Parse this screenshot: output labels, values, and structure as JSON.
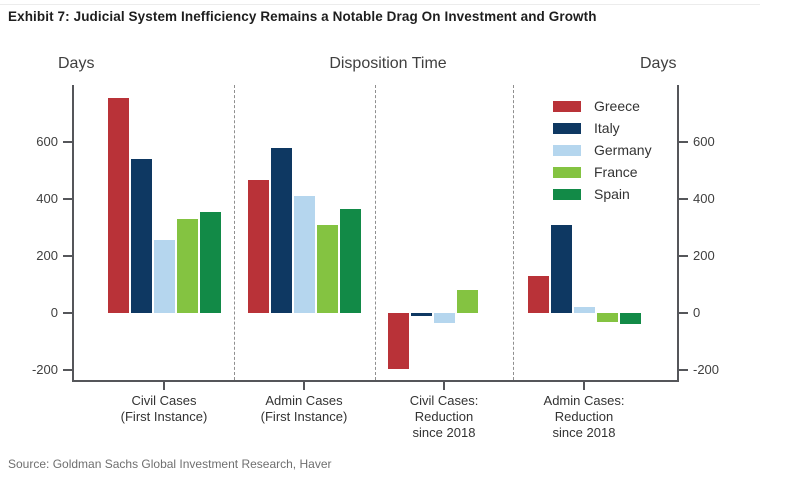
{
  "title": "Exhibit 7: Judicial System Inefficiency Remains a Notable Drag On Investment and Growth",
  "source": "Source: Goldman Sachs Global Investment Research, Haver",
  "axis_labels": {
    "left": "Days",
    "center": "Disposition Time",
    "right": "Days"
  },
  "chart_data": {
    "type": "bar",
    "title": "Disposition Time",
    "ylabel": "Days",
    "ylabel_right": "Days",
    "ylim": [
      -240,
      800
    ],
    "yticks": [
      -200,
      0,
      200,
      400,
      600
    ],
    "grid": false,
    "legend_position": "top-right",
    "categories": [
      [
        "Civil Cases",
        "(First Instance)"
      ],
      [
        "Admin Cases",
        "(First Instance)"
      ],
      [
        "Civil Cases:",
        "Reduction",
        "since 2018"
      ],
      [
        "Admin Cases:",
        "Reduction",
        "since 2018"
      ]
    ],
    "series": [
      {
        "name": "Greece",
        "color": "#b93238",
        "values": [
          755,
          465,
          -195,
          130
        ]
      },
      {
        "name": "Italy",
        "color": "#0e3862",
        "values": [
          540,
          580,
          -10,
          310
        ]
      },
      {
        "name": "Germany",
        "color": "#b5d6ee",
        "values": [
          255,
          410,
          -35,
          20
        ]
      },
      {
        "name": "France",
        "color": "#84c341",
        "values": [
          330,
          310,
          80,
          -30
        ]
      },
      {
        "name": "Spain",
        "color": "#128a47",
        "values": [
          355,
          365,
          0,
          -40
        ]
      }
    ]
  }
}
